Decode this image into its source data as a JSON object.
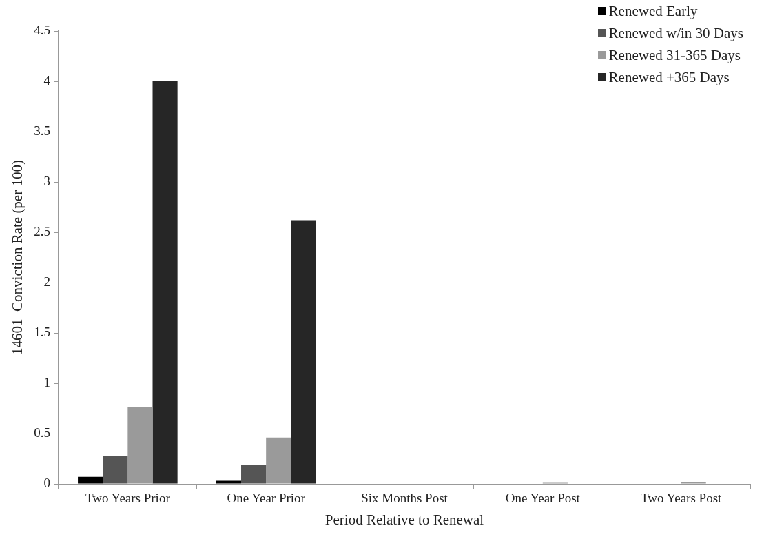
{
  "chart_data": {
    "type": "bar",
    "xlabel": "Period Relative to Renewal",
    "ylabel": "14601  Conviction Rate (per 100)",
    "categories": [
      "Two Years Prior",
      "One Year Prior",
      "Six Months Post",
      "One Year Post",
      "Two Years Post"
    ],
    "series": [
      {
        "name": "Renewed Early",
        "color": "#000000",
        "values": [
          0.07,
          0.03,
          0,
          0,
          0
        ]
      },
      {
        "name": "Renewed w/in 30 Days",
        "color": "#555555",
        "values": [
          0.28,
          0.19,
          0,
          0,
          0
        ]
      },
      {
        "name": "Renewed 31-365 Days",
        "color": "#9a9a9a",
        "values": [
          0.76,
          0.46,
          0,
          0.01,
          0.02
        ]
      },
      {
        "name": "Renewed +365 Days",
        "color": "#262626",
        "values": [
          4.0,
          2.62,
          0,
          0,
          0
        ]
      }
    ],
    "ylim": [
      0,
      4.5
    ],
    "yticks": [
      0,
      0.5,
      1,
      1.5,
      2,
      2.5,
      3,
      3.5,
      4,
      4.5
    ],
    "grid": false,
    "legend": "top right"
  }
}
